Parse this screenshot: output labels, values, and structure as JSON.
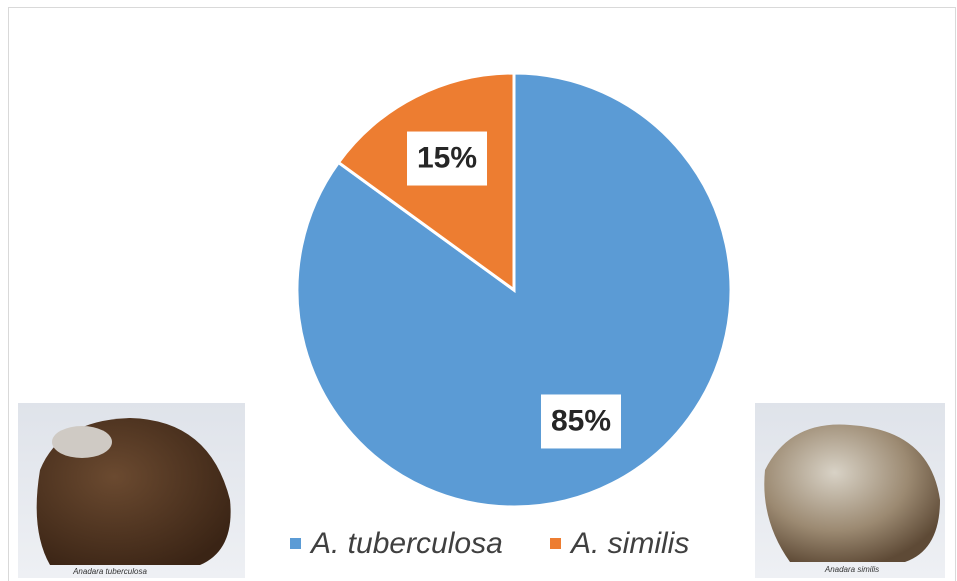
{
  "chart_data": {
    "type": "pie",
    "categories": [
      "A. tuberculosa",
      "A. similis"
    ],
    "values": [
      85,
      15
    ],
    "value_labels": [
      "85%",
      "15%"
    ],
    "colors": [
      "#5b9bd5",
      "#ed7d31"
    ],
    "legend": "bottom"
  },
  "images": [
    {
      "caption": "Anadara tuberculosa"
    },
    {
      "caption": "Anadara similis"
    }
  ]
}
